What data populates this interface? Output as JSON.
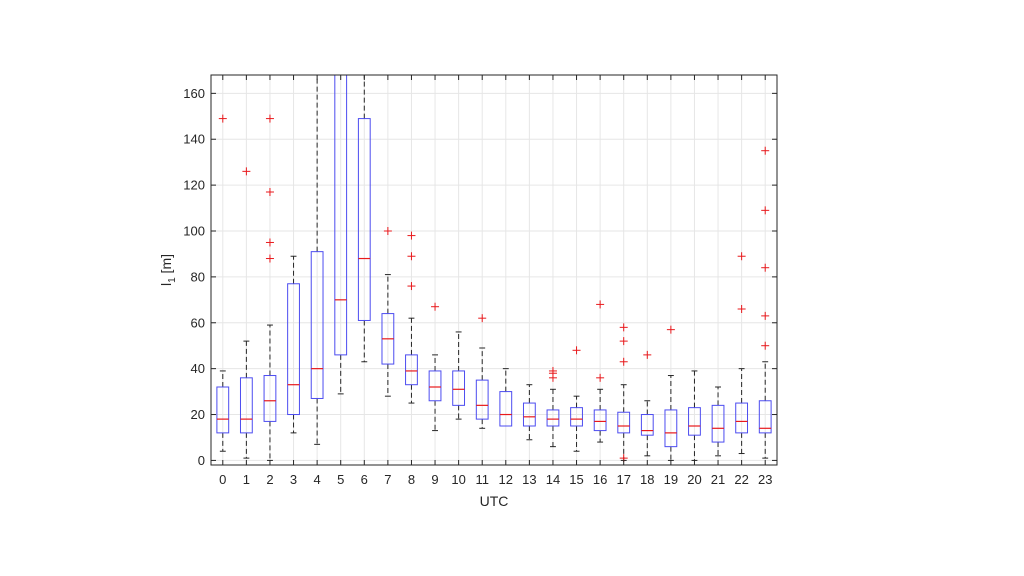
{
  "chart_data": {
    "type": "box",
    "xlabel": "UTC",
    "ylabel_main": "l",
    "ylabel_sub": "1",
    "ylabel_unit": " [m]",
    "xlim": [
      -0.5,
      23.5
    ],
    "ylim": [
      -2,
      168
    ],
    "yticks": [
      0,
      20,
      40,
      60,
      80,
      100,
      120,
      140,
      160
    ],
    "grid": true,
    "colors": {
      "box": "#4c4cf0",
      "median": "#e8191c",
      "outlier": "#e8191c",
      "whisker": "#262626",
      "grid": "#e6e6e6"
    },
    "boxes": [
      {
        "x": 0,
        "label": "0",
        "whisker_low": 4,
        "q1": 12,
        "median": 18,
        "q3": 32,
        "whisker_high": 39,
        "outliers": [
          149
        ]
      },
      {
        "x": 1,
        "label": "1",
        "whisker_low": 1,
        "q1": 12,
        "median": 18,
        "q3": 36,
        "whisker_high": 52,
        "outliers": [
          126
        ]
      },
      {
        "x": 2,
        "label": "2",
        "whisker_low": 0,
        "q1": 17,
        "median": 26,
        "q3": 37,
        "whisker_high": 59,
        "outliers": [
          149,
          117,
          95,
          88
        ]
      },
      {
        "x": 3,
        "label": "3",
        "whisker_low": 12,
        "q1": 20,
        "median": 33,
        "q3": 77,
        "whisker_high": 89,
        "outliers": []
      },
      {
        "x": 4,
        "label": "4",
        "whisker_low": 7,
        "q1": 27,
        "median": 40,
        "q3": 91,
        "whisker_high": 175,
        "outliers": []
      },
      {
        "x": 5,
        "label": "5",
        "whisker_low": 29,
        "q1": 46,
        "median": 70,
        "q3": 175,
        "whisker_high": 175,
        "outliers": []
      },
      {
        "x": 6,
        "label": "6",
        "whisker_low": 43,
        "q1": 61,
        "median": 88,
        "q3": 149,
        "whisker_high": 175,
        "outliers": []
      },
      {
        "x": 7,
        "label": "7",
        "whisker_low": 28,
        "q1": 42,
        "median": 53,
        "q3": 64,
        "whisker_high": 81,
        "outliers": [
          100
        ]
      },
      {
        "x": 8,
        "label": "8",
        "whisker_low": 25,
        "q1": 33,
        "median": 39,
        "q3": 46,
        "whisker_high": 62,
        "outliers": [
          98,
          89,
          76
        ]
      },
      {
        "x": 9,
        "label": "9",
        "whisker_low": 13,
        "q1": 26,
        "median": 32,
        "q3": 39,
        "whisker_high": 46,
        "outliers": [
          67
        ]
      },
      {
        "x": 10,
        "label": "10",
        "whisker_low": 18,
        "q1": 24,
        "median": 31,
        "q3": 39,
        "whisker_high": 56,
        "outliers": []
      },
      {
        "x": 11,
        "label": "11",
        "whisker_low": 14,
        "q1": 18,
        "median": 24,
        "q3": 35,
        "whisker_high": 49,
        "outliers": [
          62
        ]
      },
      {
        "x": 12,
        "label": "12",
        "whisker_low": 15,
        "q1": 15,
        "median": 20,
        "q3": 30,
        "whisker_high": 40,
        "outliers": []
      },
      {
        "x": 13,
        "label": "13",
        "whisker_low": 9,
        "q1": 15,
        "median": 19,
        "q3": 25,
        "whisker_high": 33,
        "outliers": []
      },
      {
        "x": 14,
        "label": "14",
        "whisker_low": 6,
        "q1": 15,
        "median": 18,
        "q3": 22,
        "whisker_high": 31,
        "outliers": [
          38,
          36,
          39
        ]
      },
      {
        "x": 15,
        "label": "15",
        "whisker_low": 4,
        "q1": 15,
        "median": 18,
        "q3": 23,
        "whisker_high": 28,
        "outliers": [
          48
        ]
      },
      {
        "x": 16,
        "label": "16",
        "whisker_low": 8,
        "q1": 13,
        "median": 17,
        "q3": 22,
        "whisker_high": 31,
        "outliers": [
          68,
          36
        ]
      },
      {
        "x": 17,
        "label": "17",
        "whisker_low": 0,
        "q1": 12,
        "median": 15,
        "q3": 21,
        "whisker_high": 33,
        "outliers": [
          58,
          52,
          43,
          1
        ]
      },
      {
        "x": 18,
        "label": "18",
        "whisker_low": 2,
        "q1": 11,
        "median": 13,
        "q3": 20,
        "whisker_high": 26,
        "outliers": [
          46
        ]
      },
      {
        "x": 19,
        "label": "19",
        "whisker_low": 0,
        "q1": 6,
        "median": 12,
        "q3": 22,
        "whisker_high": 37,
        "outliers": [
          57
        ]
      },
      {
        "x": 20,
        "label": "20",
        "whisker_low": 0,
        "q1": 11,
        "median": 15,
        "q3": 23,
        "whisker_high": 39,
        "outliers": []
      },
      {
        "x": 21,
        "label": "21",
        "whisker_low": 2,
        "q1": 8,
        "median": 14,
        "q3": 24,
        "whisker_high": 32,
        "outliers": []
      },
      {
        "x": 22,
        "label": "22",
        "whisker_low": 3,
        "q1": 12,
        "median": 17,
        "q3": 25,
        "whisker_high": 40,
        "outliers": [
          89,
          66
        ]
      },
      {
        "x": 23,
        "label": "23",
        "whisker_low": 1,
        "q1": 12,
        "median": 14,
        "q3": 26,
        "whisker_high": 43,
        "outliers": [
          135,
          109,
          84,
          63,
          50
        ]
      }
    ]
  }
}
